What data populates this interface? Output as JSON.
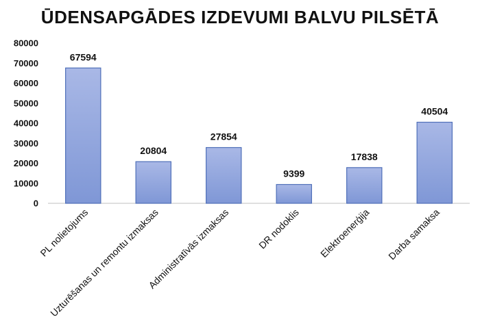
{
  "chart_data": {
    "type": "bar",
    "title": "ŪDENSAPGĀDES IZDEVUMI BALVU PILSĒTĀ",
    "categories": [
      "PL nolietojums",
      "Uzturēšanas un remontu izmaksas",
      "Administratīvās izmaksas",
      "DR nodoklis",
      "Elektroenerģija",
      "Darba samaksa"
    ],
    "values": [
      67594,
      20804,
      27854,
      9399,
      17838,
      40504
    ],
    "data_labels": [
      "67594",
      "20804",
      "27854",
      "9399",
      "17838",
      "40504"
    ],
    "yticks": [
      0,
      10000,
      20000,
      30000,
      40000,
      50000,
      60000,
      70000,
      80000
    ],
    "ytick_labels": [
      "0",
      "10000",
      "20000",
      "30000",
      "40000",
      "50000",
      "60000",
      "70000",
      "80000"
    ],
    "ylim": [
      0,
      80000
    ],
    "xlabel": "",
    "ylabel": "",
    "grid": false,
    "legend": "none",
    "colors": {
      "bar_top": "#a9b8e6",
      "bar_bottom": "#7f97d6",
      "bar_border": "#4f6fb8",
      "axis": "#bfbfbf"
    }
  }
}
